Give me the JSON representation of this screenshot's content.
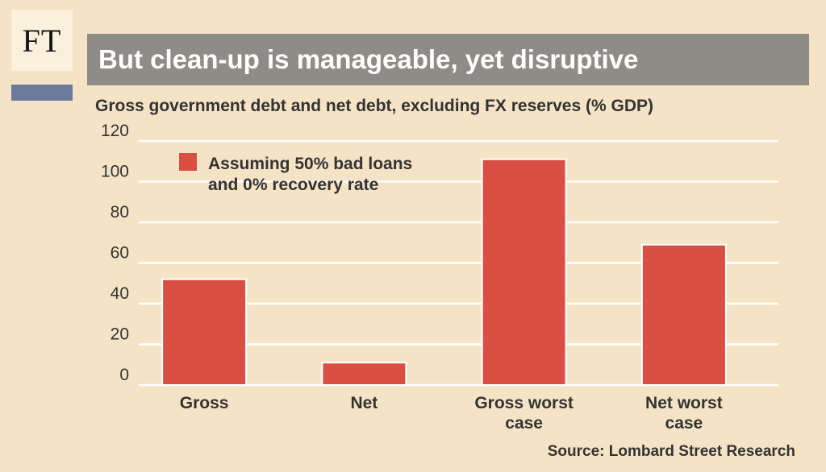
{
  "logo": {
    "text": "FT",
    "accent_color": "#6b7a9c"
  },
  "title": "But clean-up is manageable, yet disruptive",
  "subtitle": "Gross government debt and net debt, excluding FX reserves (% GDP)",
  "source": "Source: Lombard Street Research",
  "chart_data": {
    "type": "bar",
    "title": "But clean-up is manageable, yet disruptive",
    "subtitle": "Gross government debt and net debt, excluding FX reserves (% GDP)",
    "categories": [
      [
        "Gross"
      ],
      [
        "Net"
      ],
      [
        "Gross worst",
        "case"
      ],
      [
        "Net worst",
        "case"
      ]
    ],
    "values": [
      52,
      11,
      111,
      69
    ],
    "ylim": [
      0,
      120
    ],
    "yticks": [
      0,
      20,
      40,
      60,
      80,
      100,
      120
    ],
    "grid": true,
    "legend": {
      "placement": "top-left",
      "lines": [
        "Assuming 50% bad loans",
        "and 0% recovery rate"
      ]
    },
    "bar_color": "#d94f43",
    "grid_color": "#ffffff"
  }
}
